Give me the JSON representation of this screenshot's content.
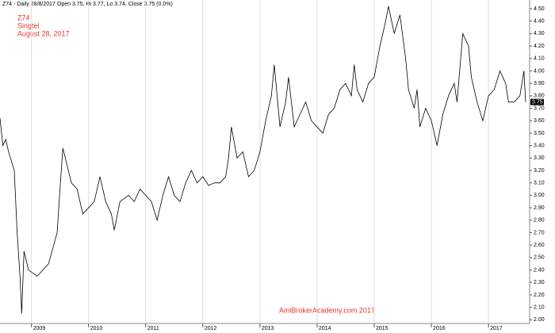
{
  "chart_data": {
    "type": "line",
    "title": "Z74 - Daily 28/8/2017 Open 3.75, Hi 3.77, Lo 3.74, Close 3.75 (0.0%)",
    "annotations": [
      "Z74",
      "Singtel",
      "August 28, 2017"
    ],
    "watermark": "AmiBrokerAcademy.com  2017",
    "color": "#000000",
    "annotation_color": "#e8322f",
    "xgrid": true,
    "xlim": [
      2008.45,
      2017.72
    ],
    "xticks": [
      2009,
      2010,
      2011,
      2012,
      2013,
      2014,
      2015,
      2016,
      2017
    ],
    "ylim": [
      1.97,
      4.57
    ],
    "yticks": [
      {
        "value": 2,
        "label": "2.00"
      },
      {
        "value": 2.1,
        "label": "2.10"
      },
      {
        "value": 2.2,
        "label": "2.20"
      },
      {
        "value": 2.3,
        "label": "2.30"
      },
      {
        "value": 2.4,
        "label": "2.40"
      },
      {
        "value": 2.5,
        "label": "2.50"
      },
      {
        "value": 2.6,
        "label": "2.60"
      },
      {
        "value": 2.7,
        "label": "2.70"
      },
      {
        "value": 2.8,
        "label": "2.80"
      },
      {
        "value": 2.9,
        "label": "2.90"
      },
      {
        "value": 3,
        "label": "3.00"
      },
      {
        "value": 3.1,
        "label": "3.10"
      },
      {
        "value": 3.2,
        "label": "3.20"
      },
      {
        "value": 3.3,
        "label": "3.30"
      },
      {
        "value": 3.4,
        "label": "3.40"
      },
      {
        "value": 3.5,
        "label": "3.50"
      },
      {
        "value": 3.6,
        "label": "3.60"
      },
      {
        "value": 3.7,
        "label": "3.70"
      },
      {
        "value": 3.8,
        "label": "3.80"
      },
      {
        "value": 3.9,
        "label": "3.90"
      },
      {
        "value": 4,
        "label": "4.00"
      },
      {
        "value": 4.1,
        "label": "4.10"
      },
      {
        "value": 4.2,
        "label": "4.20"
      },
      {
        "value": 4.3,
        "label": "4.30"
      },
      {
        "value": 4.4,
        "label": "4.40"
      },
      {
        "value": 4.5,
        "label": "4.50"
      }
    ],
    "last_value": {
      "value": 3.75,
      "label": "3.75"
    },
    "x": [
      2008.45,
      2008.5,
      2008.55,
      2008.6,
      2008.7,
      2008.75,
      2008.8,
      2008.83,
      2008.87,
      2008.95,
      2009.1,
      2009.3,
      2009.45,
      2009.5,
      2009.55,
      2009.7,
      2009.8,
      2009.9,
      2010.0,
      2010.1,
      2010.2,
      2010.3,
      2010.4,
      2010.45,
      2010.55,
      2010.7,
      2010.8,
      2010.9,
      2011.0,
      2011.1,
      2011.2,
      2011.3,
      2011.4,
      2011.5,
      2011.6,
      2011.7,
      2011.8,
      2011.9,
      2012.0,
      2012.1,
      2012.2,
      2012.3,
      2012.4,
      2012.45,
      2012.5,
      2012.6,
      2012.7,
      2012.8,
      2012.9,
      2013.0,
      2013.1,
      2013.2,
      2013.25,
      2013.35,
      2013.45,
      2013.5,
      2013.6,
      2013.7,
      2013.8,
      2013.9,
      2014.0,
      2014.1,
      2014.2,
      2014.3,
      2014.4,
      2014.5,
      2014.6,
      2014.65,
      2014.7,
      2014.8,
      2014.9,
      2015.0,
      2015.1,
      2015.2,
      2015.25,
      2015.35,
      2015.45,
      2015.55,
      2015.6,
      2015.7,
      2015.75,
      2015.8,
      2015.9,
      2016.0,
      2016.1,
      2016.2,
      2016.3,
      2016.4,
      2016.45,
      2016.55,
      2016.65,
      2016.7,
      2016.8,
      2016.9,
      2017.0,
      2017.1,
      2017.2,
      2017.3,
      2017.35,
      2017.45,
      2017.55,
      2017.62,
      2017.65
    ],
    "values": [
      3.62,
      3.4,
      3.45,
      3.35,
      3.2,
      2.7,
      2.35,
      2.05,
      2.55,
      2.4,
      2.35,
      2.45,
      2.7,
      3.05,
      3.38,
      3.1,
      3.05,
      2.85,
      2.9,
      2.95,
      3.15,
      2.95,
      2.85,
      2.72,
      2.95,
      3.0,
      2.95,
      3.05,
      3.0,
      2.95,
      2.8,
      3.0,
      3.15,
      3.0,
      2.95,
      3.1,
      3.2,
      3.1,
      3.15,
      3.08,
      3.1,
      3.1,
      3.15,
      3.3,
      3.55,
      3.3,
      3.35,
      3.15,
      3.2,
      3.35,
      3.6,
      3.8,
      4.05,
      3.55,
      3.75,
      3.95,
      3.55,
      3.65,
      3.75,
      3.6,
      3.55,
      3.5,
      3.65,
      3.7,
      3.85,
      3.9,
      3.8,
      4.05,
      3.85,
      3.75,
      3.9,
      3.95,
      4.2,
      4.4,
      4.52,
      4.3,
      4.45,
      4.1,
      3.85,
      3.7,
      3.85,
      3.55,
      3.7,
      3.6,
      3.4,
      3.65,
      3.8,
      3.9,
      3.75,
      4.3,
      4.2,
      3.95,
      3.75,
      3.6,
      3.8,
      3.85,
      4.0,
      3.9,
      3.75,
      3.75,
      3.8,
      4.0,
      3.75
    ]
  }
}
